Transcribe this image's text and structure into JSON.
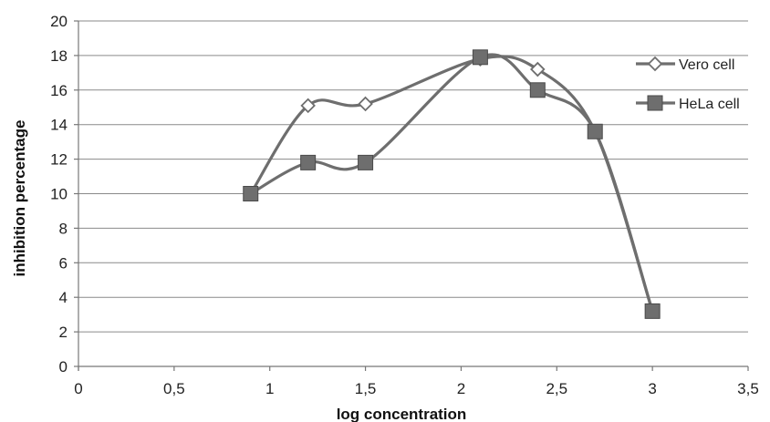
{
  "chart_data": {
    "type": "line",
    "title": "",
    "xlabel": "log concentration",
    "ylabel": "inhibition percentage",
    "xlim": [
      0,
      3.5
    ],
    "ylim": [
      0,
      20
    ],
    "x_ticks": [
      "0",
      "0,5",
      "1",
      "1,5",
      "2",
      "2,5",
      "3",
      "3,5"
    ],
    "y_ticks": [
      "0",
      "2",
      "4",
      "6",
      "8",
      "10",
      "12",
      "14",
      "16",
      "18",
      "20"
    ],
    "grid": "horizontal",
    "smooth": true,
    "legend": "right",
    "series": [
      {
        "name": "Vero cell",
        "marker": "diamond-open",
        "color": "#6e6e6e",
        "x": [
          0.9,
          1.2,
          1.5,
          2.1,
          2.4,
          2.7,
          3.0
        ],
        "y": [
          10.0,
          15.1,
          15.2,
          17.8,
          17.2,
          13.6,
          3.2
        ]
      },
      {
        "name": "HeLa cell",
        "marker": "square-filled",
        "color": "#6e6e6e",
        "x": [
          0.9,
          1.2,
          1.5,
          2.1,
          2.4,
          2.7,
          3.0
        ],
        "y": [
          10.0,
          11.8,
          11.8,
          17.9,
          16.0,
          13.6,
          3.2
        ]
      }
    ]
  }
}
